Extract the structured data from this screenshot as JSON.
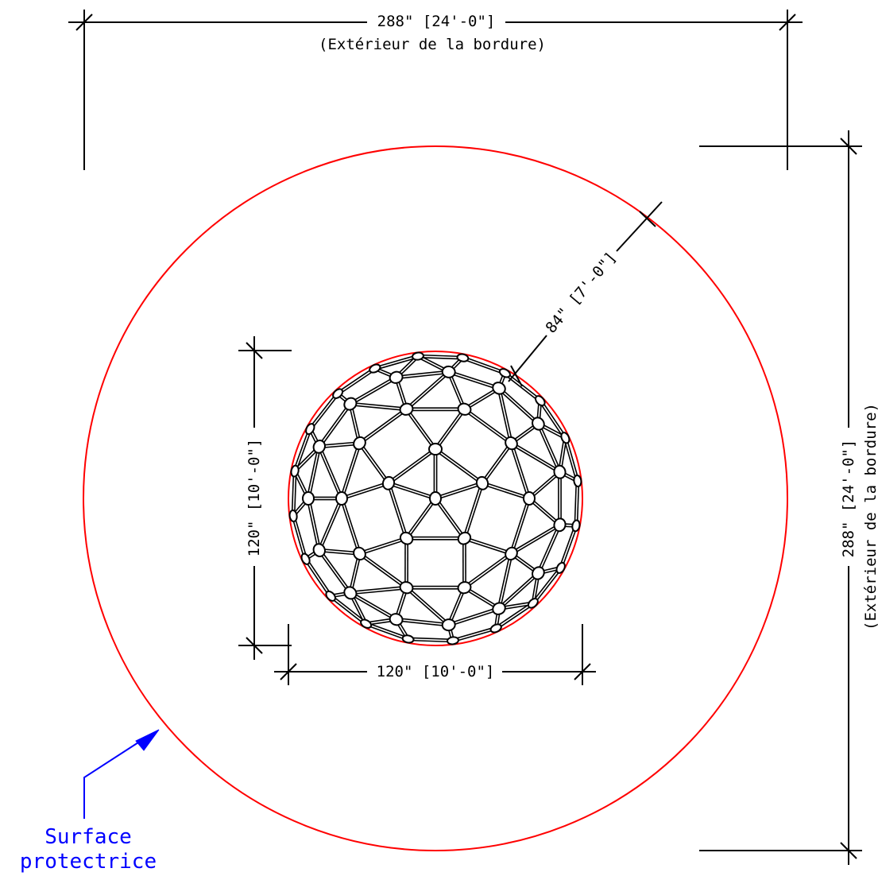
{
  "dimensions": {
    "top_width": {
      "text": "288\" [24'-0\"]",
      "subtext": "(Extérieur de la bordure)"
    },
    "right_height": {
      "text": "288\" [24'-0\"]",
      "subtext": "(Extérieur de la bordure)"
    },
    "clearance": {
      "text": "84\" [7'-0\"]"
    },
    "dome_height": {
      "text": "120\" [10'-0\"]"
    },
    "dome_width": {
      "text": "120\" [10'-0\"]"
    }
  },
  "callout": {
    "line1": "Surface",
    "line2": "protectrice"
  },
  "colors": {
    "line": "#000000",
    "circle": "#ff0000",
    "callout": "#0000ff"
  }
}
